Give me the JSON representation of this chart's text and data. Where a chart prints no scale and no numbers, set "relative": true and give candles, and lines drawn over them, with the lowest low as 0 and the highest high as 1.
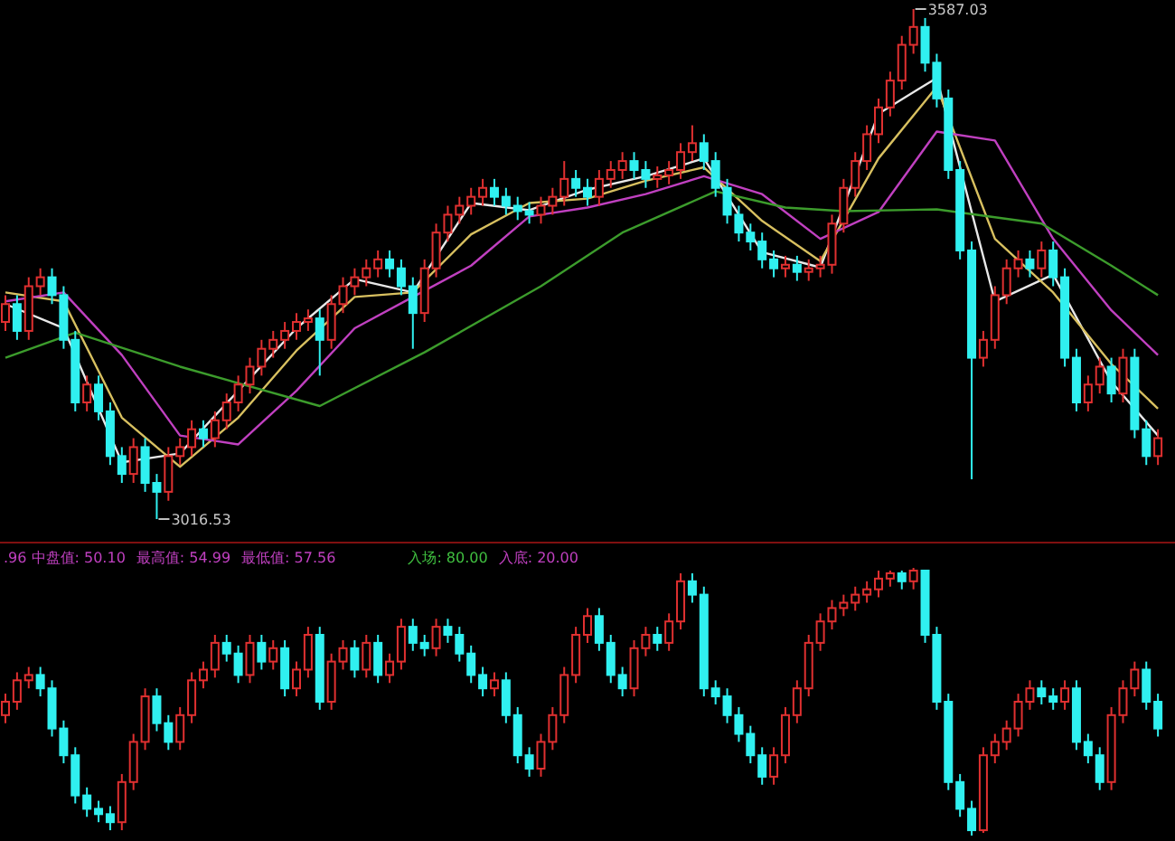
{
  "chart_data": [
    {
      "type": "candlestick",
      "categories": [
        null,
        null,
        null,
        null,
        null,
        null,
        null,
        null,
        null,
        null,
        null,
        null,
        null,
        null,
        null,
        null,
        null,
        null,
        null,
        null,
        null,
        null,
        null,
        null,
        null,
        null,
        null,
        null,
        null,
        null,
        null,
        null,
        null,
        null,
        null,
        null,
        null,
        null,
        null,
        null,
        null,
        null,
        null,
        null,
        null,
        null,
        null,
        null,
        null,
        null,
        null,
        null,
        null,
        null,
        null,
        null,
        null,
        null,
        null,
        null,
        null,
        null,
        null,
        null,
        null,
        null,
        null,
        null,
        null,
        null,
        null,
        null,
        null,
        null,
        null,
        null,
        null,
        null,
        null,
        null,
        null,
        null,
        null,
        null,
        null,
        null,
        null,
        null,
        null,
        null,
        null,
        null,
        null,
        null,
        null,
        null,
        null,
        null,
        null,
        null
      ],
      "ohlc": [
        [
          3237,
          3267,
          3227,
          3257
        ],
        [
          3257,
          3267,
          3217,
          3227
        ],
        [
          3227,
          3287,
          3217,
          3277
        ],
        [
          3277,
          3297,
          3267,
          3287
        ],
        [
          3287,
          3297,
          3257,
          3267
        ],
        [
          3267,
          3277,
          3207,
          3217
        ],
        [
          3217,
          3227,
          3137,
          3147
        ],
        [
          3147,
          3177,
          3137,
          3167
        ],
        [
          3167,
          3177,
          3127,
          3137
        ],
        [
          3137,
          3147,
          3077,
          3087
        ],
        [
          3087,
          3097,
          3057,
          3067
        ],
        [
          3067,
          3107,
          3057,
          3097
        ],
        [
          3097,
          3107,
          3047,
          3057
        ],
        [
          3057,
          3067,
          3016.53,
          3047
        ],
        [
          3047,
          3097,
          3037,
          3087
        ],
        [
          3087,
          3107,
          3077,
          3097
        ],
        [
          3097,
          3127,
          3087,
          3117
        ],
        [
          3117,
          3127,
          3097,
          3107
        ],
        [
          3107,
          3137,
          3097,
          3127
        ],
        [
          3127,
          3157,
          3117,
          3147
        ],
        [
          3147,
          3177,
          3137,
          3167
        ],
        [
          3167,
          3197,
          3157,
          3187
        ],
        [
          3187,
          3217,
          3177,
          3207
        ],
        [
          3207,
          3227,
          3197,
          3217
        ],
        [
          3217,
          3237,
          3207,
          3227
        ],
        [
          3227,
          3247,
          3217,
          3237
        ],
        [
          3237,
          3251,
          3227,
          3241
        ],
        [
          3241,
          3251,
          3177,
          3217
        ],
        [
          3217,
          3267,
          3207,
          3257
        ],
        [
          3257,
          3287,
          3247,
          3277
        ],
        [
          3277,
          3297,
          3267,
          3287
        ],
        [
          3287,
          3307,
          3277,
          3297
        ],
        [
          3297,
          3317,
          3287,
          3307
        ],
        [
          3307,
          3317,
          3287,
          3297
        ],
        [
          3297,
          3307,
          3267,
          3277
        ],
        [
          3277,
          3287,
          3207,
          3247
        ],
        [
          3247,
          3307,
          3237,
          3297
        ],
        [
          3297,
          3347,
          3287,
          3337
        ],
        [
          3337,
          3367,
          3327,
          3357
        ],
        [
          3357,
          3377,
          3347,
          3367
        ],
        [
          3367,
          3387,
          3357,
          3377
        ],
        [
          3377,
          3397,
          3367,
          3387
        ],
        [
          3387,
          3397,
          3367,
          3377
        ],
        [
          3377,
          3387,
          3357,
          3367
        ],
        [
          3367,
          3377,
          3351,
          3361
        ],
        [
          3361,
          3371,
          3347,
          3357
        ],
        [
          3357,
          3377,
          3347,
          3367
        ],
        [
          3367,
          3387,
          3357,
          3377
        ],
        [
          3377,
          3417,
          3367,
          3397
        ],
        [
          3397,
          3407,
          3377,
          3387
        ],
        [
          3387,
          3397,
          3367,
          3377
        ],
        [
          3377,
          3407,
          3367,
          3397
        ],
        [
          3397,
          3417,
          3387,
          3407
        ],
        [
          3407,
          3427,
          3397,
          3417
        ],
        [
          3417,
          3427,
          3397,
          3407
        ],
        [
          3407,
          3417,
          3387,
          3397
        ],
        [
          3397,
          3411,
          3387,
          3401
        ],
        [
          3401,
          3417,
          3391,
          3407
        ],
        [
          3407,
          3437,
          3397,
          3427
        ],
        [
          3427,
          3457,
          3417,
          3437
        ],
        [
          3437,
          3447,
          3407,
          3417
        ],
        [
          3417,
          3427,
          3377,
          3387
        ],
        [
          3387,
          3397,
          3347,
          3357
        ],
        [
          3357,
          3367,
          3327,
          3337
        ],
        [
          3337,
          3347,
          3317,
          3327
        ],
        [
          3327,
          3337,
          3297,
          3307
        ],
        [
          3307,
          3317,
          3287,
          3297
        ],
        [
          3297,
          3311,
          3287,
          3301
        ],
        [
          3301,
          3311,
          3283,
          3293
        ],
        [
          3293,
          3307,
          3283,
          3297
        ],
        [
          3297,
          3311,
          3287,
          3301
        ],
        [
          3301,
          3357,
          3291,
          3347
        ],
        [
          3347,
          3397,
          3337,
          3387
        ],
        [
          3387,
          3427,
          3377,
          3417
        ],
        [
          3417,
          3457,
          3407,
          3447
        ],
        [
          3447,
          3487,
          3437,
          3477
        ],
        [
          3477,
          3517,
          3467,
          3507
        ],
        [
          3507,
          3557,
          3497,
          3547
        ],
        [
          3547,
          3587.03,
          3537,
          3567
        ],
        [
          3567,
          3577,
          3517,
          3527
        ],
        [
          3527,
          3537,
          3477,
          3487
        ],
        [
          3487,
          3497,
          3397,
          3407
        ],
        [
          3407,
          3417,
          3307,
          3317
        ],
        [
          3317,
          3327,
          3061,
          3197
        ],
        [
          3197,
          3227,
          3187,
          3217
        ],
        [
          3217,
          3277,
          3207,
          3267
        ],
        [
          3267,
          3307,
          3257,
          3297
        ],
        [
          3297,
          3317,
          3287,
          3307
        ],
        [
          3307,
          3317,
          3287,
          3297
        ],
        [
          3297,
          3327,
          3287,
          3317
        ],
        [
          3317,
          3327,
          3277,
          3287
        ],
        [
          3287,
          3297,
          3187,
          3197
        ],
        [
          3197,
          3207,
          3137,
          3147
        ],
        [
          3147,
          3177,
          3137,
          3167
        ],
        [
          3167,
          3197,
          3157,
          3187
        ],
        [
          3187,
          3197,
          3147,
          3157
        ],
        [
          3157,
          3207,
          3147,
          3197
        ],
        [
          3197,
          3207,
          3107,
          3117
        ],
        [
          3117,
          3127,
          3077,
          3087
        ],
        [
          3087,
          3117,
          3077,
          3107
        ]
      ],
      "series": [
        {
          "type": "line",
          "color": "#e8e8e8",
          "values": [
            3257,
            null,
            null,
            null,
            null,
            3230,
            null,
            null,
            null,
            null,
            3080,
            null,
            null,
            null,
            null,
            3090,
            null,
            null,
            null,
            null,
            3160,
            null,
            null,
            null,
            null,
            3230,
            null,
            null,
            null,
            null,
            3285,
            null,
            null,
            null,
            null,
            3270,
            null,
            null,
            null,
            null,
            3370,
            null,
            null,
            null,
            null,
            3362,
            null,
            null,
            null,
            null,
            3385,
            null,
            null,
            null,
            null,
            3400,
            null,
            null,
            null,
            null,
            3420,
            null,
            null,
            null,
            null,
            3315,
            null,
            null,
            null,
            null,
            3298,
            null,
            null,
            null,
            null,
            3470,
            null,
            null,
            null,
            null,
            3510,
            null,
            null,
            null,
            null,
            3260,
            null,
            null,
            null,
            null,
            3290,
            null,
            null,
            null,
            null,
            3170,
            null,
            null,
            null,
            3110
          ]
        },
        {
          "type": "line",
          "color": "#d8c060",
          "values": [
            3270,
            null,
            null,
            null,
            null,
            3260,
            null,
            null,
            null,
            null,
            3130,
            null,
            null,
            null,
            null,
            3075,
            null,
            null,
            null,
            null,
            3130,
            null,
            null,
            null,
            null,
            3205,
            null,
            null,
            null,
            null,
            3265,
            null,
            null,
            null,
            null,
            3270,
            null,
            null,
            null,
            null,
            3335,
            null,
            null,
            null,
            null,
            3370,
            null,
            null,
            null,
            null,
            3375,
            null,
            null,
            null,
            null,
            3395,
            null,
            null,
            null,
            null,
            3410,
            null,
            null,
            null,
            null,
            3350,
            null,
            null,
            null,
            null,
            3305,
            null,
            null,
            null,
            null,
            3420,
            null,
            null,
            null,
            null,
            3500,
            null,
            null,
            null,
            null,
            3330,
            null,
            null,
            null,
            null,
            3270,
            null,
            null,
            null,
            null,
            3190,
            null,
            null,
            null,
            3140
          ]
        },
        {
          "type": "line",
          "color": "#c040c0",
          "values": [
            3260,
            null,
            null,
            null,
            null,
            3270,
            null,
            null,
            null,
            null,
            3200,
            null,
            null,
            null,
            null,
            3110,
            null,
            null,
            null,
            null,
            3100,
            null,
            null,
            null,
            null,
            3160,
            null,
            null,
            null,
            null,
            3230,
            null,
            null,
            null,
            null,
            3265,
            null,
            null,
            null,
            null,
            3300,
            null,
            null,
            null,
            null,
            3355,
            null,
            null,
            null,
            null,
            3365,
            null,
            null,
            null,
            null,
            3380,
            null,
            null,
            null,
            null,
            3400,
            null,
            null,
            null,
            null,
            3380,
            null,
            null,
            null,
            null,
            3330,
            null,
            null,
            null,
            null,
            3360,
            null,
            null,
            null,
            null,
            3450,
            null,
            null,
            null,
            null,
            3440,
            null,
            null,
            null,
            null,
            3330,
            null,
            null,
            null,
            null,
            3250,
            null,
            null,
            null,
            3200
          ]
        },
        {
          "type": "line",
          "color": "#3c9c2c",
          "values": [
            3197,
            null,
            null,
            null,
            null,
            null,
            3225,
            null,
            null,
            null,
            null,
            null,
            null,
            null,
            null,
            3187,
            null,
            null,
            null,
            null,
            null,
            null,
            null,
            null,
            null,
            null,
            null,
            3143,
            null,
            null,
            null,
            null,
            null,
            null,
            null,
            null,
            3203,
            null,
            null,
            null,
            null,
            null,
            null,
            null,
            null,
            null,
            3277,
            null,
            null,
            null,
            null,
            null,
            null,
            3337,
            null,
            null,
            null,
            null,
            null,
            null,
            null,
            3383,
            null,
            null,
            null,
            null,
            null,
            3365,
            null,
            null,
            null,
            null,
            3361,
            null,
            null,
            null,
            null,
            null,
            null,
            null,
            3363,
            null,
            null,
            null,
            null,
            null,
            null,
            null,
            null,
            3347,
            null,
            null,
            null,
            null,
            null,
            3300,
            null,
            null,
            null,
            3267
          ]
        }
      ],
      "annotations": [
        "3587.03",
        "3016.53"
      ]
    },
    {
      "type": "candlestick",
      "relative": true,
      "categories": [
        null,
        null,
        null,
        null,
        null,
        null,
        null,
        null,
        null,
        null,
        null,
        null,
        null,
        null,
        null,
        null,
        null,
        null,
        null,
        null,
        null,
        null,
        null,
        null,
        null,
        null,
        null,
        null,
        null,
        null,
        null,
        null,
        null,
        null,
        null,
        null,
        null,
        null,
        null,
        null,
        null,
        null,
        null,
        null,
        null,
        null,
        null,
        null,
        null,
        null,
        null,
        null,
        null,
        null,
        null,
        null,
        null,
        null,
        null,
        null,
        null,
        null,
        null,
        null,
        null,
        null,
        null,
        null,
        null,
        null,
        null,
        null,
        null,
        null,
        null,
        null,
        null,
        null,
        null,
        null,
        null,
        null,
        null,
        null,
        null,
        null,
        null,
        null,
        null,
        null,
        null,
        null,
        null,
        null,
        null,
        null,
        null,
        null,
        null,
        null
      ],
      "ohlc": [
        [
          0.45,
          0.53,
          0.42,
          0.5
        ],
        [
          0.5,
          0.61,
          0.47,
          0.58
        ],
        [
          0.58,
          0.63,
          0.55,
          0.6
        ],
        [
          0.6,
          0.63,
          0.52,
          0.55
        ],
        [
          0.55,
          0.58,
          0.37,
          0.4
        ],
        [
          0.4,
          0.43,
          0.27,
          0.3
        ],
        [
          0.3,
          0.33,
          0.12,
          0.15
        ],
        [
          0.15,
          0.18,
          0.07,
          0.1
        ],
        [
          0.1,
          0.13,
          0.05,
          0.08
        ],
        [
          0.08,
          0.11,
          0.02,
          0.05
        ],
        [
          0.05,
          0.23,
          0.02,
          0.2
        ],
        [
          0.2,
          0.38,
          0.17,
          0.35
        ],
        [
          0.35,
          0.55,
          0.32,
          0.52
        ],
        [
          0.52,
          0.55,
          0.39,
          0.42
        ],
        [
          0.42,
          0.45,
          0.32,
          0.35
        ],
        [
          0.35,
          0.48,
          0.32,
          0.45
        ],
        [
          0.45,
          0.61,
          0.42,
          0.58
        ],
        [
          0.58,
          0.65,
          0.55,
          0.62
        ],
        [
          0.62,
          0.75,
          0.59,
          0.72
        ],
        [
          0.72,
          0.75,
          0.65,
          0.68
        ],
        [
          0.68,
          0.71,
          0.57,
          0.6
        ],
        [
          0.6,
          0.75,
          0.57,
          0.72
        ],
        [
          0.72,
          0.75,
          0.62,
          0.65
        ],
        [
          0.65,
          0.73,
          0.62,
          0.7
        ],
        [
          0.7,
          0.73,
          0.52,
          0.55
        ],
        [
          0.55,
          0.65,
          0.52,
          0.62
        ],
        [
          0.62,
          0.78,
          0.59,
          0.75
        ],
        [
          0.75,
          0.78,
          0.47,
          0.5
        ],
        [
          0.5,
          0.68,
          0.47,
          0.65
        ],
        [
          0.65,
          0.73,
          0.62,
          0.7
        ],
        [
          0.7,
          0.73,
          0.59,
          0.62
        ],
        [
          0.62,
          0.75,
          0.59,
          0.72
        ],
        [
          0.72,
          0.75,
          0.57,
          0.6
        ],
        [
          0.6,
          0.68,
          0.57,
          0.65
        ],
        [
          0.65,
          0.81,
          0.62,
          0.78
        ],
        [
          0.78,
          0.81,
          0.69,
          0.72
        ],
        [
          0.72,
          0.75,
          0.67,
          0.7
        ],
        [
          0.7,
          0.81,
          0.67,
          0.78
        ],
        [
          0.78,
          0.81,
          0.72,
          0.75
        ],
        [
          0.75,
          0.78,
          0.65,
          0.68
        ],
        [
          0.68,
          0.71,
          0.57,
          0.6
        ],
        [
          0.6,
          0.63,
          0.52,
          0.55
        ],
        [
          0.55,
          0.61,
          0.52,
          0.58
        ],
        [
          0.58,
          0.61,
          0.42,
          0.45
        ],
        [
          0.45,
          0.48,
          0.27,
          0.3
        ],
        [
          0.3,
          0.33,
          0.22,
          0.25
        ],
        [
          0.25,
          0.38,
          0.22,
          0.35
        ],
        [
          0.35,
          0.48,
          0.32,
          0.45
        ],
        [
          0.45,
          0.63,
          0.42,
          0.6
        ],
        [
          0.6,
          0.78,
          0.57,
          0.75
        ],
        [
          0.75,
          0.85,
          0.72,
          0.82
        ],
        [
          0.82,
          0.85,
          0.69,
          0.72
        ],
        [
          0.72,
          0.75,
          0.57,
          0.6
        ],
        [
          0.6,
          0.63,
          0.52,
          0.55
        ],
        [
          0.55,
          0.73,
          0.52,
          0.7
        ],
        [
          0.7,
          0.78,
          0.67,
          0.75
        ],
        [
          0.75,
          0.78,
          0.69,
          0.72
        ],
        [
          0.72,
          0.83,
          0.69,
          0.8
        ],
        [
          0.8,
          0.98,
          0.77,
          0.95
        ],
        [
          0.95,
          0.98,
          0.87,
          0.9
        ],
        [
          0.9,
          0.93,
          0.52,
          0.55
        ],
        [
          0.55,
          0.58,
          0.49,
          0.52
        ],
        [
          0.52,
          0.55,
          0.42,
          0.45
        ],
        [
          0.45,
          0.48,
          0.35,
          0.38
        ],
        [
          0.38,
          0.41,
          0.27,
          0.3
        ],
        [
          0.3,
          0.33,
          0.19,
          0.22
        ],
        [
          0.22,
          0.33,
          0.19,
          0.3
        ],
        [
          0.3,
          0.48,
          0.27,
          0.45
        ],
        [
          0.45,
          0.58,
          0.42,
          0.55
        ],
        [
          0.55,
          0.75,
          0.52,
          0.72
        ],
        [
          0.72,
          0.83,
          0.69,
          0.8
        ],
        [
          0.8,
          0.88,
          0.77,
          0.85
        ],
        [
          0.85,
          0.9,
          0.82,
          0.87
        ],
        [
          0.87,
          0.93,
          0.84,
          0.9
        ],
        [
          0.9,
          0.95,
          0.87,
          0.92
        ],
        [
          0.92,
          0.99,
          0.89,
          0.96
        ],
        [
          0.96,
          0.99,
          0.93,
          0.98
        ],
        [
          0.98,
          0.99,
          0.92,
          0.95
        ],
        [
          0.95,
          1,
          0.92,
          0.99
        ],
        [
          0.99,
          0.99,
          0.72,
          0.75
        ],
        [
          0.75,
          0.78,
          0.47,
          0.5
        ],
        [
          0.5,
          0.53,
          0.17,
          0.2
        ],
        [
          0.2,
          0.23,
          0.07,
          0.1
        ],
        [
          0.1,
          0.13,
          0,
          0.02
        ],
        [
          0.02,
          0.33,
          0.01,
          0.3
        ],
        [
          0.3,
          0.38,
          0.27,
          0.35
        ],
        [
          0.35,
          0.43,
          0.32,
          0.4
        ],
        [
          0.4,
          0.53,
          0.37,
          0.5
        ],
        [
          0.5,
          0.58,
          0.47,
          0.55
        ],
        [
          0.55,
          0.58,
          0.49,
          0.52
        ],
        [
          0.52,
          0.55,
          0.47,
          0.5
        ],
        [
          0.5,
          0.58,
          0.47,
          0.55
        ],
        [
          0.55,
          0.58,
          0.32,
          0.35
        ],
        [
          0.35,
          0.38,
          0.27,
          0.3
        ],
        [
          0.3,
          0.33,
          0.17,
          0.2
        ],
        [
          0.2,
          0.48,
          0.17,
          0.45
        ],
        [
          0.45,
          0.58,
          0.42,
          0.55
        ],
        [
          0.55,
          0.65,
          0.52,
          0.62
        ],
        [
          0.62,
          0.65,
          0.47,
          0.5
        ],
        [
          0.5,
          0.53,
          0.37,
          0.4
        ]
      ],
      "annotations": [
        ".96 中盘值: 50.10",
        "最高值: 54.99",
        "最低值: 57.56",
        "入场: 80.00",
        "入底: 20.00"
      ]
    }
  ]
}
